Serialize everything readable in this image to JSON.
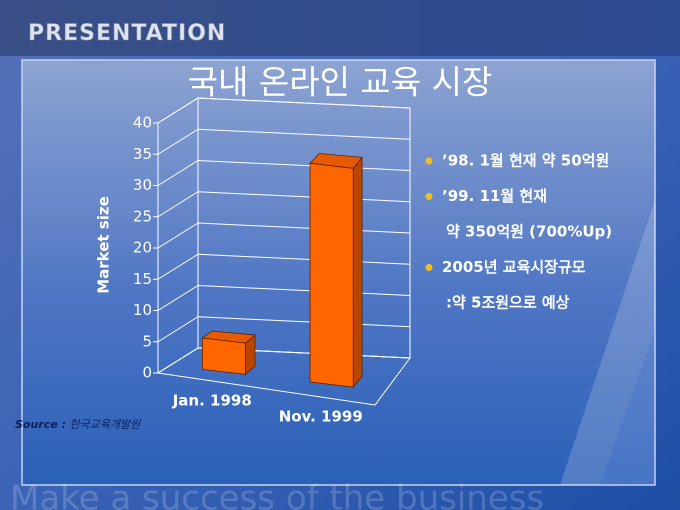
{
  "header": "PRESENTATION",
  "title": "국내 온라인 교육 시장",
  "chart_data": {
    "type": "bar3d",
    "y_label": "Market size",
    "categories": [
      "Jan. 1998",
      "Nov. 1999"
    ],
    "values": [
      5,
      35
    ],
    "color": "#ff6600",
    "ylim": [
      0,
      40
    ],
    "yticks": [
      0,
      5,
      10,
      15,
      20,
      25,
      30,
      35,
      40
    ],
    "grid": true
  },
  "source": {
    "label": "Source :",
    "text": "한국교육개발원"
  },
  "bullets": [
    {
      "text": "’98. 1월 현재  약 50억원",
      "bullet": true
    },
    {
      "text": "’99. 11월 현재",
      "bullet": true
    },
    {
      "text": "약 350억원 (700%Up)",
      "bullet": false
    },
    {
      "text": "2005년 교육시장규모",
      "bullet": true
    },
    {
      "text": ":약 5조원으로 예상",
      "bullet": false
    }
  ],
  "watermark": "Make a success of the business"
}
